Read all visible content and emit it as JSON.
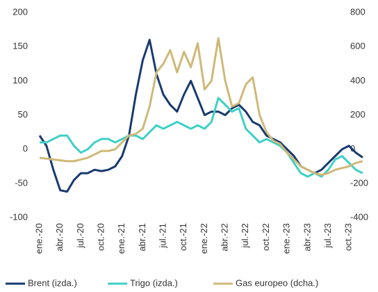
{
  "chart_data": {
    "type": "line",
    "categories": [
      "ene.-20",
      null,
      null,
      "abr.-20",
      null,
      null,
      "jul.-20",
      null,
      null,
      "oct.-20",
      null,
      null,
      "ene.-21",
      null,
      null,
      "abr.-21",
      null,
      null,
      "jul.-21",
      null,
      null,
      "oct.-21",
      null,
      null,
      "ene.-22",
      null,
      null,
      "abr.-22",
      null,
      null,
      "jul.-22",
      null,
      null,
      "oct.-22",
      null,
      null,
      "ene.-23",
      null,
      null,
      "abr.-23",
      null,
      null,
      "jul.-23",
      null,
      null,
      "oct.-23",
      null,
      null
    ],
    "series": [
      {
        "name": "Brent (izda.)",
        "color": "#173a6e",
        "values": [
          20,
          5,
          -30,
          -60,
          -62,
          -45,
          -35,
          -35,
          -30,
          -32,
          -30,
          -25,
          -10,
          20,
          80,
          130,
          160,
          110,
          80,
          65,
          55,
          80,
          100,
          75,
          50,
          55,
          55,
          50,
          60,
          65,
          55,
          40,
          35,
          20,
          15,
          10,
          0,
          -10,
          -25,
          -30,
          -35,
          -30,
          -20,
          -10,
          0,
          5,
          -5,
          -12
        ]
      },
      {
        "name": "Trigo (izda.)",
        "color": "#3ecfc6",
        "values": [
          10,
          10,
          15,
          20,
          20,
          5,
          -5,
          0,
          10,
          15,
          15,
          10,
          15,
          20,
          20,
          15,
          25,
          35,
          30,
          35,
          40,
          35,
          30,
          35,
          30,
          40,
          75,
          65,
          55,
          60,
          30,
          20,
          10,
          15,
          10,
          5,
          -5,
          -20,
          -35,
          -40,
          -35,
          -40,
          -30,
          -15,
          -10,
          -20,
          -30,
          -35
        ]
      },
      {
        "name": "Gas europeo (dcha.)",
        "color": "#cfb878",
        "axis": "y2",
        "values": [
          -50,
          -55,
          -60,
          -65,
          -70,
          -70,
          -60,
          -50,
          -30,
          -10,
          -10,
          0,
          40,
          80,
          90,
          120,
          250,
          450,
          500,
          580,
          450,
          570,
          480,
          620,
          350,
          400,
          650,
          400,
          250,
          270,
          380,
          420,
          200,
          100,
          50,
          30,
          -20,
          -60,
          -100,
          -120,
          -140,
          -150,
          -140,
          -120,
          -110,
          -100,
          -80,
          -70
        ]
      }
    ],
    "ylim": [
      -100,
      200
    ],
    "yticks": [
      -100,
      -50,
      0,
      50,
      100,
      150,
      200
    ],
    "y2lim": [
      -400,
      800
    ],
    "y2ticks": [
      -400,
      -200,
      0,
      200,
      400,
      600,
      800
    ],
    "legend": "bottom"
  }
}
